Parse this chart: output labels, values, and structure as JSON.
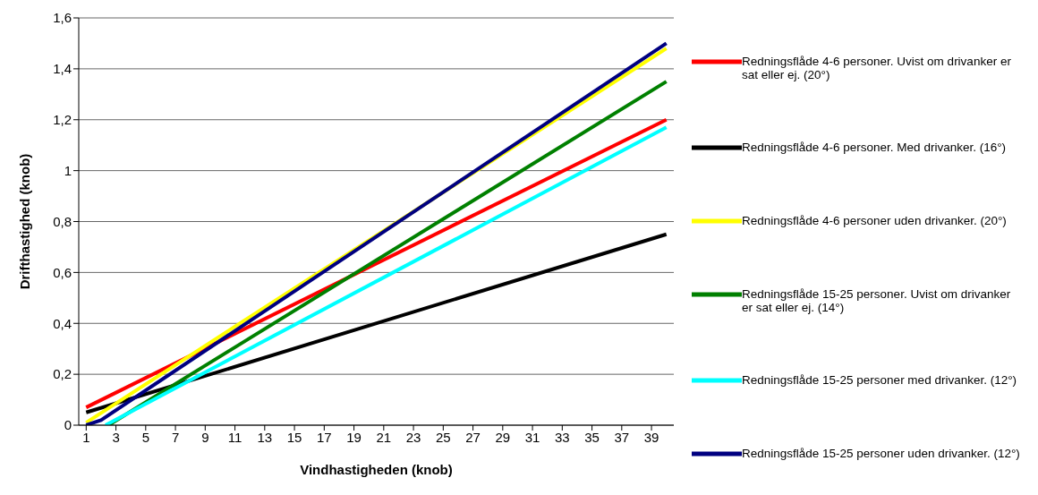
{
  "chart_data": {
    "type": "line",
    "xlabel": "Vindhastigheden (knob)",
    "ylabel": "Drifthastighed (knob)",
    "xlim": [
      0.5,
      40.5
    ],
    "xticks": [
      1,
      3,
      5,
      7,
      9,
      11,
      13,
      15,
      17,
      19,
      21,
      23,
      25,
      27,
      29,
      31,
      33,
      35,
      37,
      39
    ],
    "ylim": [
      0,
      1.6
    ],
    "yticks": [
      0,
      {
        "value": 0.2,
        "label": "0,2"
      },
      {
        "value": 0.4,
        "label": "0,4"
      },
      {
        "value": 0.6,
        "label": "0,6"
      },
      {
        "value": 0.8,
        "label": "0,8"
      },
      1,
      {
        "value": 1.2,
        "label": "1,2"
      },
      {
        "value": 1.4,
        "label": "1,4"
      },
      {
        "value": 1.6,
        "label": "1,6"
      }
    ],
    "grid": "y",
    "legend": "right",
    "marker": "none",
    "line_style": "solid",
    "series": [
      {
        "name": "Redningsflåde 4-6 personer. Uvist om drivanker er sat eller ej. (20°)",
        "color": "#ff0000",
        "x": [
          1,
          40
        ],
        "values": [
          0.07,
          1.2
        ]
      },
      {
        "name": "Redningsflåde 4-6 personer. Med drivanker. (16°)",
        "color": "#000000",
        "x": [
          1,
          40
        ],
        "values": [
          0.05,
          0.75
        ]
      },
      {
        "name": "Redningsflåde 4-6 personer uden drivanker. (20°)",
        "color": "#ffff00",
        "x": [
          1,
          40
        ],
        "values": [
          0.01,
          1.48
        ]
      },
      {
        "name": "Redningsflåde 15-25 personer. Uvist om drivanker er sat eller ej. (14°)",
        "color": "#008000",
        "x": [
          2.5,
          40
        ],
        "values": [
          0,
          1.35
        ]
      },
      {
        "name": "Redningsflåde 15-25 personer med drivanker. (12°)",
        "color": "#00ffff",
        "x": [
          2.3,
          40
        ],
        "values": [
          0,
          1.17
        ]
      },
      {
        "name": "Redningsflåde 15-25 personer uden drivanker. (12°)",
        "color": "#000080",
        "x": [
          1,
          2,
          40
        ],
        "values": [
          0,
          0.02,
          1.5
        ]
      }
    ]
  }
}
